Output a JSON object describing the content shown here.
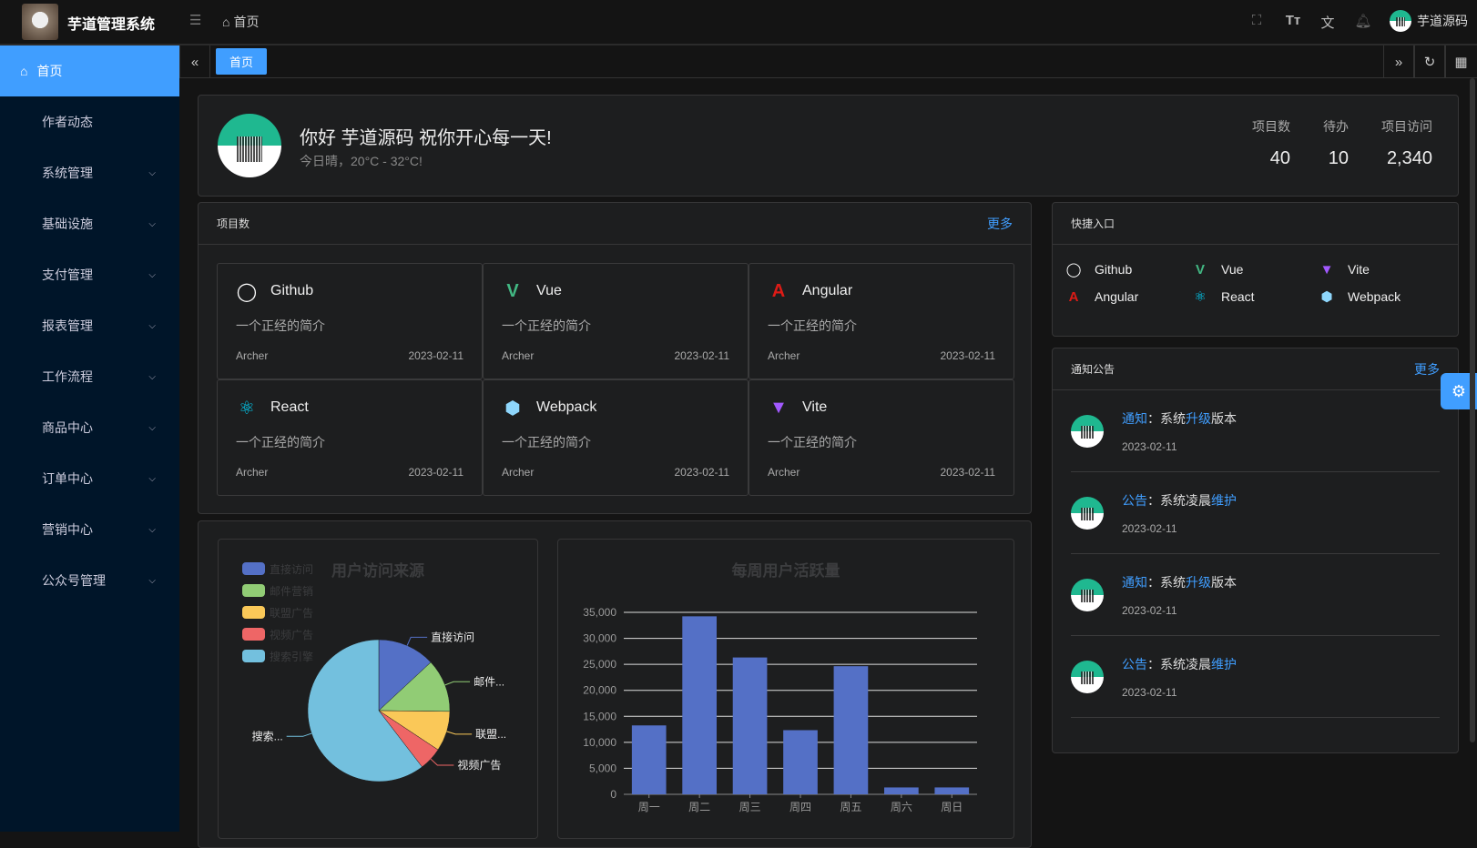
{
  "header": {
    "app_title": "芋道管理系统",
    "breadcrumb": "首页",
    "user_name": "芋道源码",
    "icons": [
      "fullscreen-icon",
      "font-size-icon",
      "translate-icon",
      "bell-icon"
    ]
  },
  "sidebar": {
    "items": [
      {
        "label": "首页",
        "active": true
      },
      {
        "label": "作者动态"
      },
      {
        "label": "系统管理",
        "expandable": true
      },
      {
        "label": "基础设施",
        "expandable": true
      },
      {
        "label": "支付管理",
        "expandable": true
      },
      {
        "label": "报表管理",
        "expandable": true
      },
      {
        "label": "工作流程",
        "expandable": true
      },
      {
        "label": "商品中心",
        "expandable": true
      },
      {
        "label": "订单中心",
        "expandable": true
      },
      {
        "label": "营销中心",
        "expandable": true
      },
      {
        "label": "公众号管理",
        "expandable": true
      }
    ]
  },
  "tags": {
    "active": "首页"
  },
  "welcome": {
    "greeting": "你好 芋道源码 祝你开心每一天!",
    "weather": "今日晴，20°C - 32°C!",
    "stats": [
      {
        "label": "项目数",
        "value": "40"
      },
      {
        "label": "待办",
        "value": "10"
      },
      {
        "label": "项目访问",
        "value": "2,340"
      }
    ]
  },
  "projects": {
    "title": "项目数",
    "more": "更多",
    "items": [
      {
        "name": "Github",
        "icon": "github",
        "color": "#ffffff",
        "desc": "一个正经的简介",
        "author": "Archer",
        "date": "2023-02-11"
      },
      {
        "name": "Vue",
        "icon": "vue",
        "color": "#42b883",
        "desc": "一个正经的简介",
        "author": "Archer",
        "date": "2023-02-11"
      },
      {
        "name": "Angular",
        "icon": "angular",
        "color": "#dd1b16",
        "desc": "一个正经的简介",
        "author": "Archer",
        "date": "2023-02-11"
      },
      {
        "name": "React",
        "icon": "react",
        "color": "#00d8ff",
        "desc": "一个正经的简介",
        "author": "Archer",
        "date": "2023-02-11"
      },
      {
        "name": "Webpack",
        "icon": "webpack",
        "color": "#8ed6fb",
        "desc": "一个正经的简介",
        "author": "Archer",
        "date": "2023-02-11"
      },
      {
        "name": "Vite",
        "icon": "vite",
        "color": "#a259ff",
        "desc": "一个正经的简介",
        "author": "Archer",
        "date": "2023-02-11"
      }
    ]
  },
  "quick": {
    "title": "快捷入口",
    "items": [
      {
        "name": "Github",
        "icon": "github",
        "color": "#ffffff"
      },
      {
        "name": "Vue",
        "icon": "vue",
        "color": "#42b883"
      },
      {
        "name": "Vite",
        "icon": "vite",
        "color": "#a259ff"
      },
      {
        "name": "Angular",
        "icon": "angular",
        "color": "#dd1b16"
      },
      {
        "name": "React",
        "icon": "react",
        "color": "#00d8ff"
      },
      {
        "name": "Webpack",
        "icon": "webpack",
        "color": "#8ed6fb"
      }
    ]
  },
  "notice": {
    "title": "通知公告",
    "more": "更多",
    "items": [
      {
        "type": "通知",
        "sep": "：",
        "p1": "系统",
        "h1": "升级",
        "p2": "版本",
        "h2": "",
        "date": "2023-02-11"
      },
      {
        "type": "公告",
        "sep": "：",
        "p1": "系统凌晨",
        "h1": "维护",
        "p2": "",
        "h2": "",
        "date": "2023-02-11"
      },
      {
        "type": "通知",
        "sep": "：",
        "p1": "系统",
        "h1": "升级",
        "p2": "版本",
        "h2": "",
        "date": "2023-02-11"
      },
      {
        "type": "公告",
        "sep": "：",
        "p1": "系统凌晨",
        "h1": "维护",
        "p2": "",
        "h2": "",
        "date": "2023-02-11"
      }
    ]
  },
  "colors": {
    "accent": "#409eff",
    "sidebar_bg": "#001529"
  },
  "chart_data": [
    {
      "type": "pie",
      "title": "用户访问来源",
      "legend_position": "top-left",
      "categories": [
        "直接访问",
        "邮件营销",
        "联盟广告",
        "视频广告",
        "搜索引擎"
      ],
      "slice_labels": [
        "直接访问",
        "邮件...",
        "联盟...",
        "视频广告",
        "搜索..."
      ],
      "values": [
        335,
        310,
        234,
        135,
        1548
      ],
      "colors": [
        "#5470c6",
        "#91cc75",
        "#fac858",
        "#ee6666",
        "#73c0de"
      ]
    },
    {
      "type": "bar",
      "title": "每周用户活跃量",
      "categories": [
        "周一",
        "周二",
        "周三",
        "周四",
        "周五",
        "周六",
        "周日"
      ],
      "values": [
        13253,
        34235,
        26321,
        12340,
        24643,
        1322,
        1324
      ],
      "ylim": [
        0,
        35000
      ],
      "yticks": [
        "0",
        "5,000",
        "10,000",
        "15,000",
        "20,000",
        "25,000",
        "30,000",
        "35,000"
      ],
      "grid": true,
      "color": "#5470c6"
    }
  ]
}
